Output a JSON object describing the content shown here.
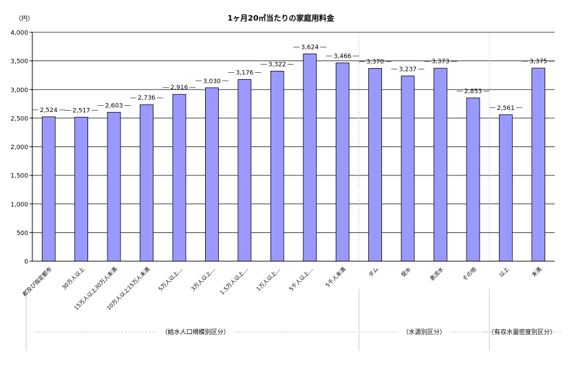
{
  "chart_data": {
    "type": "bar",
    "title": "1ヶ月20㎥当たりの家庭用料金",
    "unit_label": "（円）",
    "categories": [
      "都及び指定都市",
      "30万人以上",
      "15万人以上30万人未満",
      "10万人以上15万人未満",
      "5万人以上…",
      "3万人以上…",
      "1.5万人以上…",
      "1万人以上…",
      "5千人以上…",
      "5千人未満",
      "ダム",
      "受水",
      "表流水",
      "その他",
      "以上",
      "未満"
    ],
    "values": [
      2524,
      2517,
      2603,
      2736,
      2916,
      3030,
      3176,
      3322,
      3624,
      3466,
      3370,
      3237,
      3373,
      2853,
      2561,
      3375
    ],
    "data_labels": [
      "2,524",
      "2,517",
      "2,603",
      "2,736",
      "2,916",
      "3,030",
      "3,176",
      "3,322",
      "3,624",
      "3,466",
      "3,370",
      "3,237",
      "3,373",
      "2,853",
      "2,561",
      "3,375"
    ],
    "yticks": [
      "0",
      "500",
      "1,000",
      "1,500",
      "2,000",
      "2,500",
      "3,000",
      "3,500",
      "4,000"
    ],
    "ylim": [
      0,
      4000
    ],
    "grid": true,
    "bar_color": "#9999FF",
    "groups": [
      {
        "label": "（給水人口規模別区分）",
        "start": 0,
        "end": 9
      },
      {
        "label": "（水源別区分）",
        "start": 10,
        "end": 13
      },
      {
        "label": "（有収水量密度別区分）",
        "start": 14,
        "end": 15
      }
    ]
  }
}
